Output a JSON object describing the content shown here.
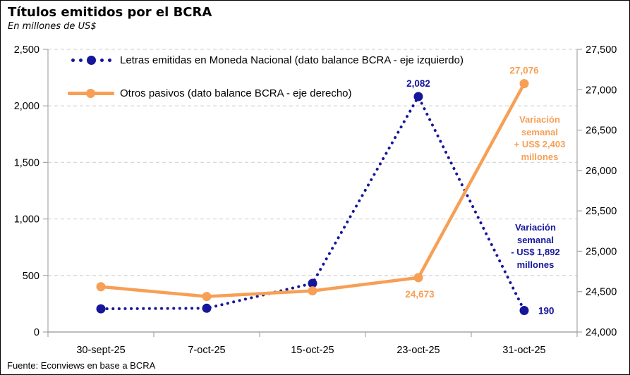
{
  "header": {
    "title": "Títulos emitidos por el BCRA",
    "subtitle": "En millones de US$"
  },
  "footer": {
    "source": "Fuente: Econviews en base a BCRA"
  },
  "colors": {
    "letras_navy": "#16169B",
    "otros_orange": "#F79F55",
    "gridline": "#D8D8D8",
    "axis": "#A6A6A6"
  },
  "chart_data": {
    "type": "line",
    "title": "Títulos emitidos por el BCRA",
    "subtitle": "En millones de US$",
    "categories": [
      "30-sept-25",
      "7-oct-25",
      "15-oct-25",
      "23-oct-25",
      "31-oct-25"
    ],
    "grid": "horizontal-dashed",
    "legend_position": "top-left-inside",
    "series": [
      {
        "name": "Letras emitidas en Moneda Nacional (dato balance BCRA - eje izquierdo)",
        "axis": "left",
        "color": "#16169B",
        "style": "dotted",
        "values": [
          205,
          210,
          430,
          2082,
          190
        ],
        "point_labels": [
          null,
          null,
          null,
          "2,082",
          "190"
        ],
        "label_positions": [
          null,
          null,
          null,
          "above",
          "right"
        ]
      },
      {
        "name": "Otros pasivos (dato balance BCRA - eje derecho)",
        "axis": "right",
        "color": "#F79F55",
        "style": "solid",
        "values": [
          24560,
          24440,
          24510,
          24673,
          27076
        ],
        "point_labels": [
          null,
          null,
          null,
          "24,673",
          "27,076"
        ],
        "label_positions": [
          null,
          null,
          null,
          "below",
          "above"
        ]
      }
    ],
    "left_axis": {
      "min": 0,
      "max": 2500,
      "ticks": [
        "0",
        "500",
        "1,000",
        "1,500",
        "2,000",
        "2,500"
      ]
    },
    "right_axis": {
      "min": 24000,
      "max": 27500,
      "ticks": [
        "24,000",
        "24,500",
        "25,000",
        "25,500",
        "26,000",
        "26,500",
        "27,000",
        "27,500"
      ]
    }
  },
  "annotations": {
    "orange_variation": "Variación\nsemanal\n+ US$ 2,403\nmillones",
    "blue_variation": "Variación\nsemanal\n- US$ 1,892\nmillones"
  }
}
